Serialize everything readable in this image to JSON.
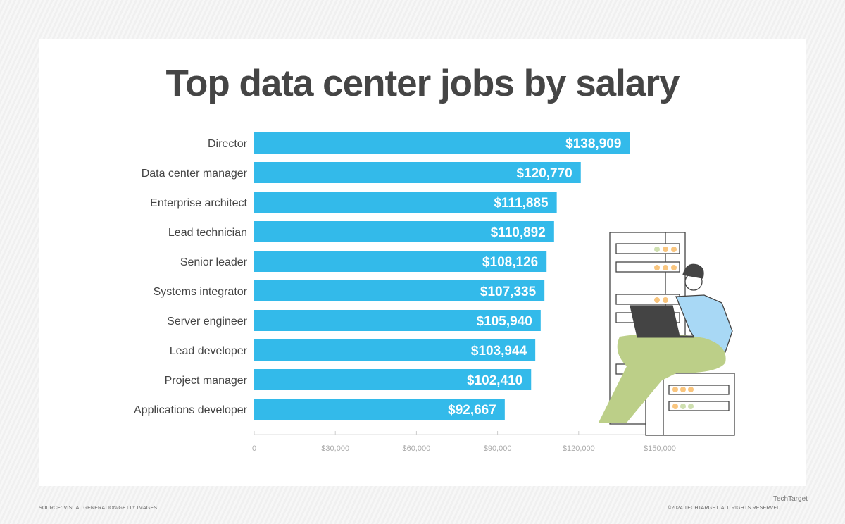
{
  "title": "Top data center jobs by salary",
  "chart_data": {
    "type": "bar",
    "orientation": "horizontal",
    "title": "Top data center jobs by salary",
    "categories": [
      "Director",
      "Data center manager",
      "Enterprise architect",
      "Lead technician",
      "Senior leader",
      "Systems integrator",
      "Server engineer",
      "Lead developer",
      "Project manager",
      "Applications developer"
    ],
    "values": [
      138909,
      120770,
      111885,
      110892,
      108126,
      107335,
      105940,
      103944,
      102410,
      92667
    ],
    "data_labels": [
      "$138,909",
      "$120,770",
      "$111,885",
      "$110,892",
      "$108,126",
      "$107,335",
      "$105,940",
      "$103,944",
      "$102,410",
      "$92,667"
    ],
    "xlim": [
      0,
      150000
    ],
    "x_ticks": [
      0,
      30000,
      60000,
      90000,
      120000,
      150000
    ],
    "x_tick_labels": [
      "0",
      "$30,000",
      "$60,000",
      "$90,000",
      "$120,000",
      "$150,000"
    ],
    "grid": true,
    "bar_color": "#33baea"
  },
  "footer": {
    "source": "SOURCE: VISUAL GENERATION/GETTY IMAGES",
    "copyright": "©2024 TECHTARGET. ALL RIGHTS RESERVED",
    "logo": "TechTarget"
  }
}
